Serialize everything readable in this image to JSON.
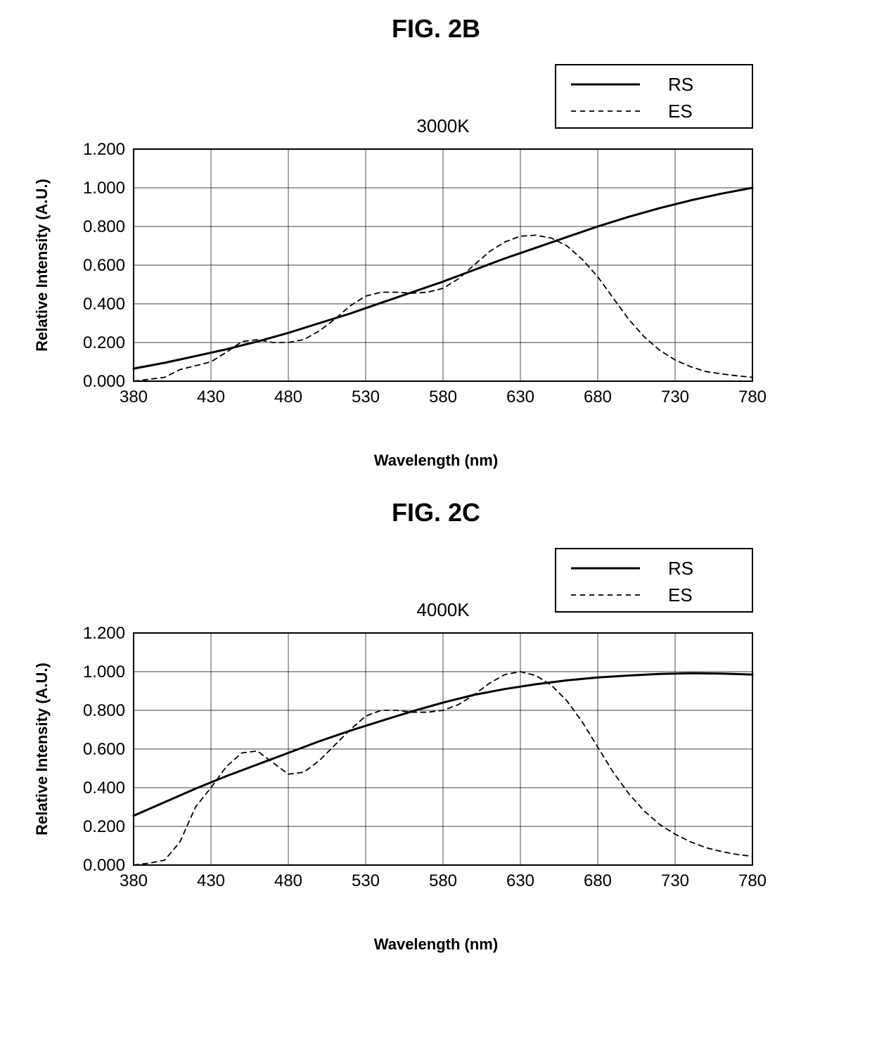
{
  "figures": [
    {
      "title": "FIG. 2B",
      "chart": {
        "type": "line",
        "subtitle": "3000K",
        "xlabel": "Wavelength (nm)",
        "ylabel": "Relative Intensity (A.U.)",
        "xlim": [
          380,
          780
        ],
        "ylim": [
          0.0,
          1.2
        ],
        "xtick_step": 50,
        "ytick_step": 0.2,
        "xtick_labels": [
          "380",
          "430",
          "480",
          "530",
          "580",
          "630",
          "680",
          "730",
          "780"
        ],
        "ytick_labels": [
          "0.000",
          "0.200",
          "0.400",
          "0.600",
          "0.800",
          "1.000",
          "1.200"
        ],
        "background_color": "#ffffff",
        "border_color": "#000000",
        "grid_color": "#000000",
        "grid_linewidth": 0.7,
        "tick_fontsize": 24,
        "label_fontsize": 22,
        "subtitle_fontsize": 26,
        "legend": {
          "position": "top-right-outside",
          "border_color": "#000000",
          "background_color": "#ffffff",
          "fontsize": 26,
          "items": [
            {
              "label": "RS",
              "color": "#000000",
              "dash": "solid",
              "linewidth": 3.0
            },
            {
              "label": "ES",
              "color": "#000000",
              "dash": "7,6",
              "linewidth": 1.8
            }
          ]
        },
        "series": [
          {
            "name": "RS",
            "color": "#000000",
            "dash": "solid",
            "linewidth": 3.0,
            "x": [
              380,
              400,
              420,
              440,
              460,
              480,
              500,
              520,
              540,
              560,
              580,
              600,
              620,
              640,
              660,
              680,
              700,
              720,
              740,
              760,
              780
            ],
            "y": [
              0.065,
              0.095,
              0.13,
              0.165,
              0.205,
              0.25,
              0.3,
              0.35,
              0.405,
              0.46,
              0.515,
              0.575,
              0.635,
              0.69,
              0.745,
              0.8,
              0.85,
              0.895,
              0.935,
              0.97,
              1.0
            ]
          },
          {
            "name": "ES",
            "color": "#000000",
            "dash": "7,6",
            "linewidth": 1.8,
            "x": [
              380,
              390,
              400,
              410,
              420,
              430,
              440,
              450,
              460,
              470,
              480,
              490,
              500,
              510,
              520,
              530,
              540,
              550,
              560,
              570,
              580,
              590,
              600,
              610,
              620,
              630,
              640,
              650,
              660,
              670,
              680,
              690,
              700,
              710,
              720,
              730,
              740,
              750,
              760,
              770,
              780
            ],
            "y": [
              0.0,
              0.01,
              0.02,
              0.06,
              0.08,
              0.1,
              0.15,
              0.205,
              0.215,
              0.2,
              0.2,
              0.215,
              0.26,
              0.32,
              0.39,
              0.44,
              0.46,
              0.46,
              0.455,
              0.46,
              0.48,
              0.53,
              0.6,
              0.67,
              0.72,
              0.75,
              0.755,
              0.74,
              0.7,
              0.63,
              0.54,
              0.43,
              0.32,
              0.23,
              0.16,
              0.11,
              0.075,
              0.05,
              0.038,
              0.028,
              0.02
            ]
          }
        ]
      }
    },
    {
      "title": "FIG. 2C",
      "chart": {
        "type": "line",
        "subtitle": "4000K",
        "xlabel": "Wavelength (nm)",
        "ylabel": "Relative Intensity (A.U.)",
        "xlim": [
          380,
          780
        ],
        "ylim": [
          0.0,
          1.2
        ],
        "xtick_step": 50,
        "ytick_step": 0.2,
        "xtick_labels": [
          "380",
          "430",
          "480",
          "530",
          "580",
          "630",
          "680",
          "730",
          "780"
        ],
        "ytick_labels": [
          "0.000",
          "0.200",
          "0.400",
          "0.600",
          "0.800",
          "1.000",
          "1.200"
        ],
        "background_color": "#ffffff",
        "border_color": "#000000",
        "grid_color": "#000000",
        "grid_linewidth": 0.7,
        "tick_fontsize": 24,
        "label_fontsize": 22,
        "subtitle_fontsize": 26,
        "legend": {
          "position": "top-right-outside",
          "border_color": "#000000",
          "background_color": "#ffffff",
          "fontsize": 26,
          "items": [
            {
              "label": "RS",
              "color": "#000000",
              "dash": "solid",
              "linewidth": 3.0
            },
            {
              "label": "ES",
              "color": "#000000",
              "dash": "7,6",
              "linewidth": 1.8
            }
          ]
        },
        "series": [
          {
            "name": "RS",
            "color": "#000000",
            "dash": "solid",
            "linewidth": 3.0,
            "x": [
              380,
              400,
              420,
              440,
              460,
              480,
              500,
              520,
              540,
              560,
              580,
              600,
              620,
              640,
              660,
              680,
              700,
              720,
              740,
              760,
              780
            ],
            "y": [
              0.255,
              0.325,
              0.395,
              0.46,
              0.52,
              0.58,
              0.64,
              0.695,
              0.745,
              0.795,
              0.84,
              0.88,
              0.91,
              0.935,
              0.955,
              0.97,
              0.98,
              0.988,
              0.992,
              0.99,
              0.985
            ]
          },
          {
            "name": "ES",
            "color": "#000000",
            "dash": "7,6",
            "linewidth": 1.8,
            "x": [
              380,
              390,
              400,
              410,
              420,
              430,
              440,
              450,
              460,
              470,
              480,
              490,
              500,
              510,
              520,
              530,
              540,
              550,
              560,
              570,
              580,
              590,
              600,
              610,
              620,
              630,
              640,
              650,
              660,
              670,
              680,
              690,
              700,
              710,
              720,
              730,
              740,
              750,
              760,
              770,
              780
            ],
            "y": [
              0.0,
              0.01,
              0.025,
              0.12,
              0.3,
              0.4,
              0.51,
              0.58,
              0.59,
              0.53,
              0.47,
              0.48,
              0.54,
              0.62,
              0.7,
              0.77,
              0.8,
              0.8,
              0.79,
              0.79,
              0.8,
              0.83,
              0.88,
              0.94,
              0.985,
              1.0,
              0.98,
              0.93,
              0.85,
              0.74,
              0.61,
              0.48,
              0.37,
              0.28,
              0.21,
              0.16,
              0.12,
              0.09,
              0.07,
              0.055,
              0.045
            ]
          }
        ]
      }
    }
  ]
}
